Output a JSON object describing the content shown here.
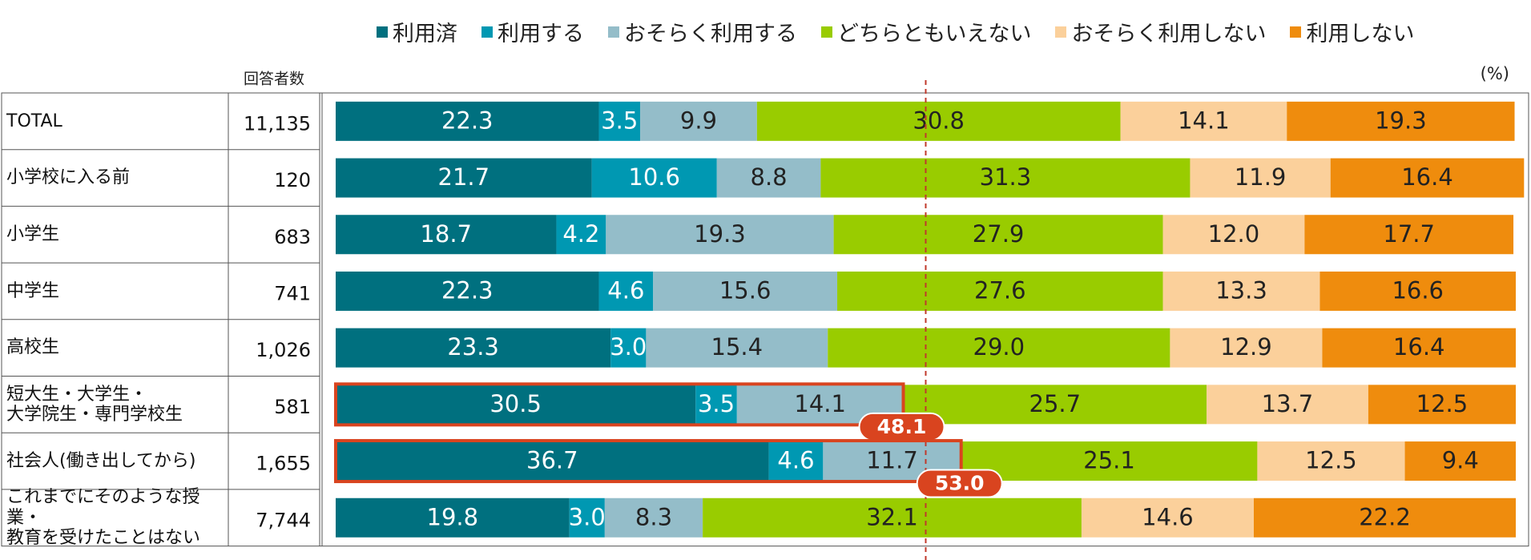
{
  "chart_data": {
    "type": "stacked-bar-horizontal",
    "unit_label": "(%)",
    "count_header": "回答者数",
    "categories": [
      "TOTAL",
      "小学校に入る前",
      "小学生",
      "中学生",
      "高校生",
      "短大生・大学生・\n大学院生・専門学校生",
      "社会人(働き出してから)",
      "これまでにそのような授業・\n教育を受けたことはない"
    ],
    "counts": [
      "11,135",
      "120",
      "683",
      "741",
      "1,026",
      "581",
      "1,655",
      "7,744"
    ],
    "xlim": [
      0,
      100
    ],
    "reference_line": 50,
    "series": [
      {
        "name": "利用済",
        "color": "#00707f",
        "label_color": "#ffffff",
        "values": [
          22.3,
          21.7,
          18.7,
          22.3,
          23.3,
          30.5,
          36.7,
          19.8
        ],
        "value_labels": [
          "22.3",
          "21.7",
          "18.7",
          "22.3",
          "23.3",
          "30.5",
          "36.7",
          "19.8"
        ]
      },
      {
        "name": "利用する",
        "color": "#0098b2",
        "label_color": "#ffffff",
        "values": [
          3.5,
          10.6,
          4.2,
          4.6,
          3.0,
          3.5,
          4.6,
          3.0
        ],
        "value_labels": [
          "3.5",
          "10.6",
          "4.2",
          "4.6",
          "3.0",
          "3.5",
          "4.6",
          "3.0"
        ]
      },
      {
        "name": "おそらく利用する",
        "color": "#94bdc9",
        "label_color": "#222222",
        "values": [
          9.9,
          8.8,
          19.3,
          15.6,
          15.4,
          14.1,
          11.7,
          8.3
        ],
        "value_labels": [
          "9.9",
          "8.8",
          "19.3",
          "15.6",
          "15.4",
          "14.1",
          "11.7",
          "8.3"
        ]
      },
      {
        "name": "どちらともいえない",
        "color": "#99cc00",
        "label_color": "#222222",
        "values": [
          30.8,
          31.3,
          27.9,
          27.6,
          29.0,
          25.7,
          25.1,
          32.1
        ],
        "value_labels": [
          "30.8",
          "31.3",
          "27.9",
          "27.6",
          "29.0",
          "25.7",
          "25.1",
          "32.1"
        ]
      },
      {
        "name": "おそらく利用しない",
        "color": "#fbd09b",
        "label_color": "#222222",
        "values": [
          14.1,
          11.9,
          12.0,
          13.3,
          12.9,
          13.7,
          12.5,
          14.6
        ],
        "value_labels": [
          "14.1",
          "11.9",
          "12.0",
          "13.3",
          "12.9",
          "13.7",
          "12.5",
          "14.6"
        ]
      },
      {
        "name": "利用しない",
        "color": "#ef8c0d",
        "label_color": "#222222",
        "values": [
          19.3,
          16.4,
          17.7,
          16.6,
          16.4,
          12.5,
          9.4,
          22.2
        ],
        "value_labels": [
          "19.3",
          "16.4",
          "17.7",
          "16.6",
          "16.4",
          "12.5",
          "9.4",
          "22.2"
        ]
      }
    ],
    "highlight_color": "#d9441f",
    "highlight_totals": [
      null,
      null,
      null,
      null,
      null,
      48.1,
      53.0,
      null
    ],
    "highlight_labels": [
      null,
      null,
      null,
      null,
      null,
      "48.1",
      "53.0",
      null
    ]
  }
}
